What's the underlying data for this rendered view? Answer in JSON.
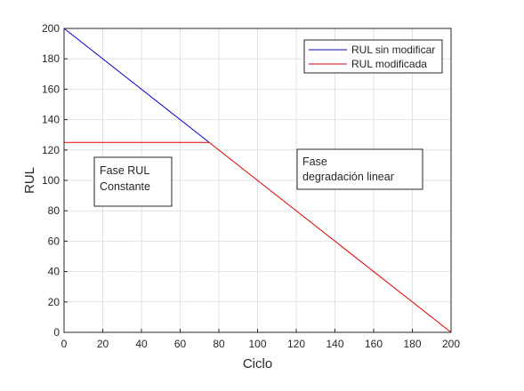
{
  "chart_data": {
    "type": "line",
    "xlabel": "Ciclo",
    "ylabel": "RUL",
    "xlim": [
      0,
      200
    ],
    "ylim": [
      0,
      200
    ],
    "xticks": [
      0,
      20,
      40,
      60,
      80,
      100,
      120,
      140,
      160,
      180,
      200
    ],
    "yticks": [
      0,
      20,
      40,
      60,
      80,
      100,
      120,
      140,
      160,
      180,
      200
    ],
    "grid": true,
    "legend_position": "top-right",
    "series": [
      {
        "name": "RUL sin modificar",
        "color": "#0000cc",
        "x": [
          0,
          75
        ],
        "y": [
          200,
          125
        ]
      },
      {
        "name": "RUL modificada",
        "color": "#e00000",
        "x": [
          0,
          75,
          200
        ],
        "y": [
          125,
          125,
          0
        ]
      }
    ],
    "annotations": [
      {
        "lines": [
          "Fase RUL",
          "Constante"
        ]
      },
      {
        "lines": [
          "Fase",
          "degradación linear"
        ]
      }
    ]
  }
}
